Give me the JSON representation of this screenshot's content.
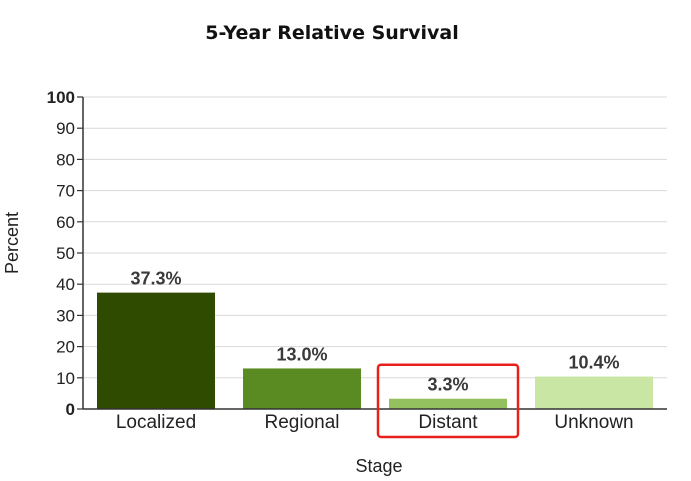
{
  "chart_data": {
    "type": "bar",
    "title": "5-Year Relative Survival",
    "xlabel": "Stage",
    "ylabel": "Percent",
    "categories": [
      "Localized",
      "Regional",
      "Distant",
      "Unknown"
    ],
    "values": [
      37.3,
      13.0,
      3.3,
      10.4
    ],
    "data_labels": [
      "37.3%",
      "13.0%",
      "3.3%",
      "10.4%"
    ],
    "colors": [
      "#2e4b00",
      "#5a8a22",
      "#94c160",
      "#c9e6a4"
    ],
    "ylim": [
      0,
      100
    ],
    "yticks": [
      "0",
      "10",
      "20",
      "30",
      "40",
      "50",
      "60",
      "70",
      "80",
      "90",
      "100"
    ],
    "grid": true,
    "legend": "none",
    "highlight": {
      "category": "Distant",
      "color": "#e8201c"
    }
  }
}
